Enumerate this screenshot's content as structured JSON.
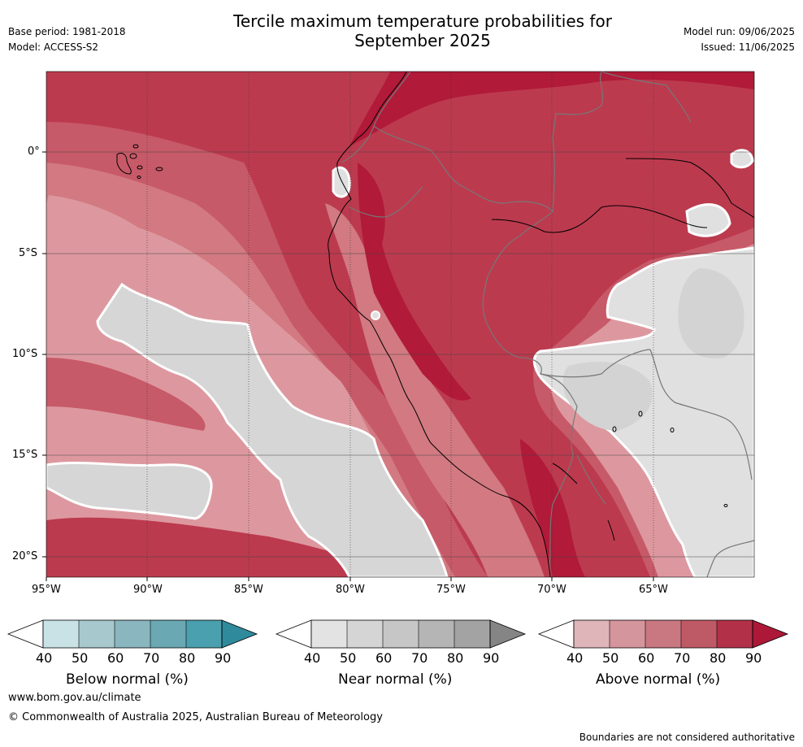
{
  "header": {
    "title_line1": "Tercile maximum temperature probabilities for",
    "title_line2": "September 2025",
    "base_period": "Base period: 1981-2018",
    "model": "Model: ACCESS-S2",
    "model_run": "Model run: 09/06/2025",
    "issued": "Issued: 11/06/2025"
  },
  "map": {
    "lon_ticks": [
      "95°W",
      "90°W",
      "85°W",
      "80°W",
      "75°W",
      "70°W",
      "65°W"
    ],
    "lat_ticks": [
      "0°",
      "5°S",
      "10°S",
      "15°S",
      "20°S"
    ],
    "lon_range": [
      -95,
      -60
    ],
    "lat_range": [
      -21,
      4
    ],
    "colors": {
      "above_90": "#b11a39",
      "above_80": "#bc3a4e",
      "above_70": "#c75a68",
      "above_60": "#d27981",
      "above_50": "#dd989f",
      "above_40": "#e8b8bc",
      "near_60": "#d3d3d3",
      "near_50": "#e0e0e0",
      "ocean_grey": "#d6d6d6"
    }
  },
  "colorbars": [
    {
      "label": "Below normal (%)",
      "ticks": [
        "40",
        "50",
        "60",
        "70",
        "80",
        "90"
      ],
      "colors": [
        "#c8e2e6",
        "#a7c9ce",
        "#89b6bf",
        "#6aa8b3",
        "#4aa0ae",
        "#2f8a9c"
      ]
    },
    {
      "label": "Near normal (%)",
      "ticks": [
        "40",
        "50",
        "60",
        "70",
        "80",
        "90"
      ],
      "colors": [
        "#e3e3e3",
        "#d5d5d5",
        "#c6c6c6",
        "#b5b5b5",
        "#a3a3a3",
        "#858585"
      ]
    },
    {
      "label": "Above normal (%)",
      "ticks": [
        "40",
        "50",
        "60",
        "70",
        "80",
        "90"
      ],
      "colors": [
        "#dfb5b9",
        "#d4959c",
        "#c97780",
        "#be5a66",
        "#b33049",
        "#ad1838"
      ]
    }
  ],
  "footer": {
    "website": "www.bom.gov.au/climate",
    "copyright": "© Commonwealth of Australia 2025, Australian Bureau of Meteorology",
    "disclaimer": "Boundaries are not considered authoritative"
  }
}
